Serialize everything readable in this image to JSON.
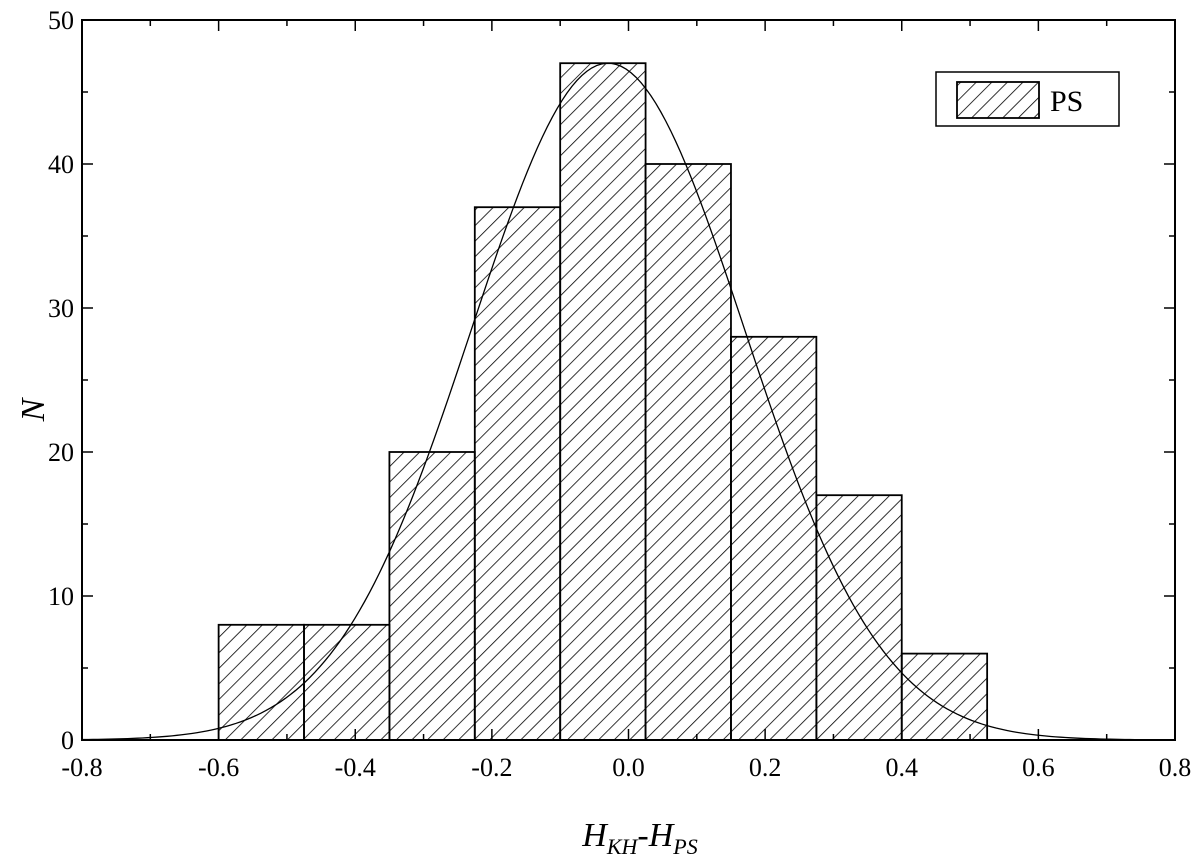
{
  "chart_data": {
    "type": "bar",
    "histogram": true,
    "bins": [
      {
        "x0": -0.6,
        "x1": -0.475,
        "count": 8
      },
      {
        "x0": -0.475,
        "x1": -0.35,
        "count": 8
      },
      {
        "x0": -0.35,
        "x1": -0.225,
        "count": 20
      },
      {
        "x0": -0.225,
        "x1": -0.1,
        "count": 37
      },
      {
        "x0": -0.1,
        "x1": 0.025,
        "count": 47
      },
      {
        "x0": 0.025,
        "x1": 0.15,
        "count": 40
      },
      {
        "x0": 0.15,
        "x1": 0.275,
        "count": 28
      },
      {
        "x0": 0.275,
        "x1": 0.4,
        "count": 17
      },
      {
        "x0": 0.4,
        "x1": 0.525,
        "count": 6
      }
    ],
    "fit_curve": {
      "type": "normal",
      "mean": -0.03,
      "sd": 0.2,
      "peak": 47,
      "x_range": [
        -0.82,
        0.77
      ]
    },
    "xlim": [
      -0.8,
      0.8
    ],
    "ylim": [
      0,
      50
    ],
    "x_ticks": [
      "-0.8",
      "-0.6",
      "-0.4",
      "-0.2",
      "0.0",
      "0.2",
      "0.4",
      "0.6",
      "0.8"
    ],
    "y_ticks": [
      "0",
      "10",
      "20",
      "30",
      "40",
      "50"
    ],
    "xlabel": {
      "h1": "H",
      "sub1": "KH",
      "dash": "-",
      "h2": "H",
      "sub2": "PS"
    },
    "ylabel": "N",
    "legend": {
      "label": "PS",
      "position": "top-right"
    },
    "grid": false,
    "bar_fill": "hatched",
    "colors": {
      "ink": "#000000",
      "background": "#ffffff"
    }
  }
}
